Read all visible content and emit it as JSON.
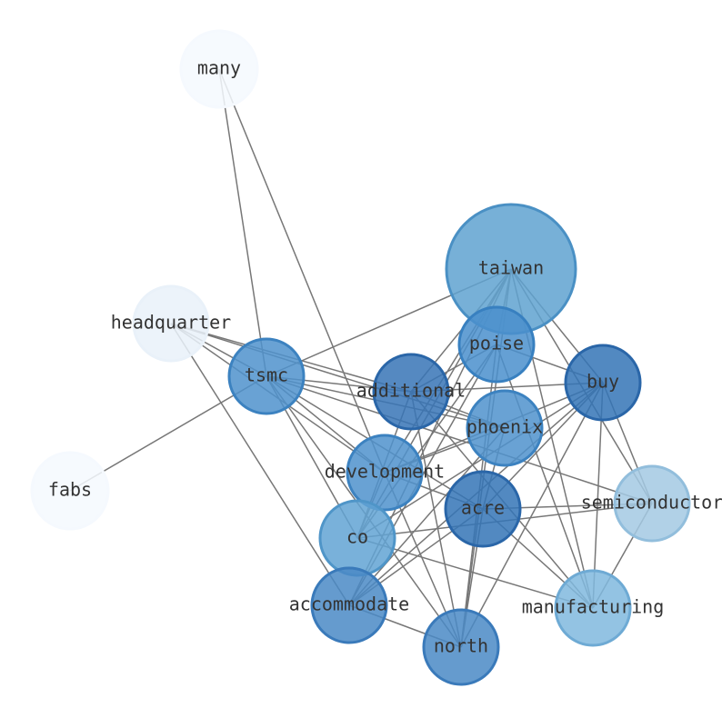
{
  "nodes": [
    {
      "label": "many"
    },
    {
      "label": "taiwan"
    },
    {
      "label": "headquarter"
    },
    {
      "label": "tsmc"
    },
    {
      "label": "poise"
    },
    {
      "label": "buy"
    },
    {
      "label": "additional"
    },
    {
      "label": "phoenix"
    },
    {
      "label": "fabs"
    },
    {
      "label": "development"
    },
    {
      "label": "semiconductor"
    },
    {
      "label": "acre"
    },
    {
      "label": "co"
    },
    {
      "label": "accommodate"
    },
    {
      "label": "manufacturing"
    },
    {
      "label": "north"
    }
  ]
}
